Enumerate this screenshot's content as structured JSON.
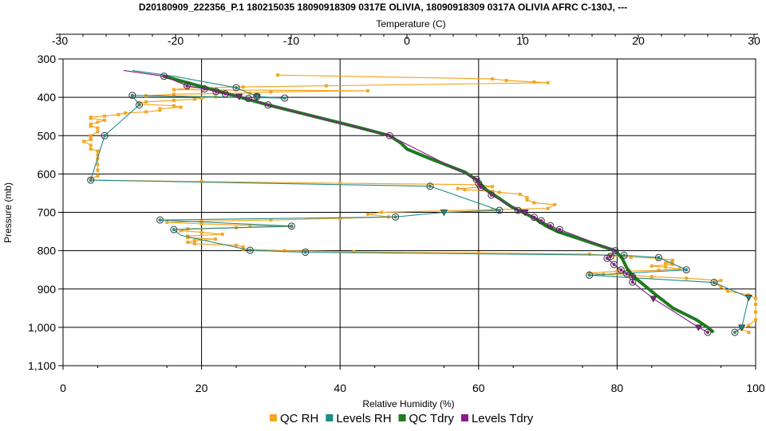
{
  "chart_data": {
    "type": "line",
    "title": "D20180909_222356_P.1 180215035 18090918309 0317E OLIVIA, 18090918309 0317A OLIVIA AFRC C-130J, ---",
    "top_axis": {
      "label": "Temperature (C)",
      "ticks": [
        "-30",
        "-20",
        "-10",
        "0",
        "10",
        "20",
        "30"
      ],
      "range": [
        -30,
        30
      ]
    },
    "bottom_axis": {
      "label": "Relative Humidity (%)",
      "ticks": [
        "0",
        "20",
        "40",
        "60",
        "80",
        "100"
      ],
      "range": [
        0,
        100
      ]
    },
    "left_axis": {
      "label": "Pressure (mb)",
      "ticks": [
        "300",
        "400",
        "500",
        "600",
        "700",
        "800",
        "900",
        "1,000",
        "1,100"
      ],
      "range": [
        300,
        1100
      ],
      "inverted": true
    },
    "grid": true,
    "legend_position": "bottom",
    "colors": {
      "qc_rh": "#f5a623",
      "levels_rh": "#1f8a8a",
      "qc_tdry": "#1e7b1e",
      "levels_tdry": "#8b1a8b"
    },
    "legend": [
      {
        "key": "qc_rh",
        "label": "QC RH"
      },
      {
        "key": "levels_rh",
        "label": "Levels RH"
      },
      {
        "key": "qc_tdry",
        "label": "QC Tdry"
      },
      {
        "key": "levels_tdry",
        "label": "Levels Tdry"
      }
    ],
    "series": [
      {
        "name": "QC RH",
        "key": "qc_rh",
        "x_axis": "rh",
        "points": [
          [
            31,
            342
          ],
          [
            62,
            352
          ],
          [
            64,
            356
          ],
          [
            68,
            360
          ],
          [
            70,
            362
          ],
          [
            38,
            370
          ],
          [
            26,
            373
          ],
          [
            18,
            376
          ],
          [
            16,
            380
          ],
          [
            44,
            383
          ],
          [
            30,
            386
          ],
          [
            27,
            389
          ],
          [
            16,
            392
          ],
          [
            12,
            396
          ],
          [
            22,
            399
          ],
          [
            20,
            402
          ],
          [
            19,
            405
          ],
          [
            16,
            408
          ],
          [
            12,
            412
          ],
          [
            11,
            415
          ],
          [
            11,
            418
          ],
          [
            16,
            422
          ],
          [
            17,
            426
          ],
          [
            14,
            430
          ],
          [
            14,
            434
          ],
          [
            12,
            438
          ],
          [
            9,
            441
          ],
          [
            8,
            445
          ],
          [
            6,
            449
          ],
          [
            4,
            452
          ],
          [
            4,
            455
          ],
          [
            6,
            460
          ],
          [
            5,
            465
          ],
          [
            4,
            470
          ],
          [
            4,
            475
          ],
          [
            5,
            480
          ],
          [
            5,
            490
          ],
          [
            4,
            500
          ],
          [
            4,
            505
          ],
          [
            4,
            510
          ],
          [
            3,
            515
          ],
          [
            4,
            525
          ],
          [
            4,
            535
          ],
          [
            5,
            540
          ],
          [
            5,
            550
          ],
          [
            5,
            560
          ],
          [
            5,
            575
          ],
          [
            5,
            590
          ],
          [
            5,
            605
          ],
          [
            4,
            612
          ],
          [
            4,
            616
          ],
          [
            20,
            620
          ],
          [
            40,
            624
          ],
          [
            60,
            628
          ],
          [
            62,
            633
          ],
          [
            57,
            638
          ],
          [
            58,
            641
          ],
          [
            62,
            645
          ],
          [
            63,
            648
          ],
          [
            66,
            653
          ],
          [
            67,
            662
          ],
          [
            67,
            668
          ],
          [
            68,
            675
          ],
          [
            71,
            680
          ],
          [
            70,
            690
          ],
          [
            62,
            693
          ],
          [
            55,
            696
          ],
          [
            46,
            700
          ],
          [
            44,
            705
          ],
          [
            47,
            712
          ],
          [
            40,
            716
          ],
          [
            30,
            720
          ],
          [
            20,
            723
          ],
          [
            15,
            726
          ],
          [
            20,
            730
          ],
          [
            27,
            734
          ],
          [
            33,
            737
          ],
          [
            25,
            740
          ],
          [
            18,
            743
          ],
          [
            17,
            748
          ],
          [
            20,
            752
          ],
          [
            23,
            757
          ],
          [
            18,
            762
          ],
          [
            18,
            766
          ],
          [
            22,
            770
          ],
          [
            19,
            774
          ],
          [
            18,
            778
          ],
          [
            19,
            782
          ],
          [
            25,
            786
          ],
          [
            26,
            790
          ],
          [
            26,
            796
          ],
          [
            32,
            800
          ],
          [
            42,
            803
          ],
          [
            60,
            806
          ],
          [
            76,
            809
          ],
          [
            79,
            813
          ],
          [
            82,
            817
          ],
          [
            86,
            820
          ],
          [
            88,
            825
          ],
          [
            88,
            828
          ],
          [
            87,
            832
          ],
          [
            88,
            836
          ],
          [
            85,
            840
          ],
          [
            87,
            843
          ],
          [
            89,
            848
          ],
          [
            86,
            851
          ],
          [
            80,
            854
          ],
          [
            76,
            858
          ],
          [
            78,
            862
          ],
          [
            82,
            864
          ],
          [
            85,
            868
          ],
          [
            90,
            872
          ],
          [
            95,
            878
          ],
          [
            94,
            884
          ],
          [
            95,
            895
          ],
          [
            96,
            906
          ],
          [
            99,
            915
          ],
          [
            100,
            925
          ],
          [
            100,
            940
          ],
          [
            100,
            960
          ],
          [
            100,
            980
          ],
          [
            99,
            995
          ],
          [
            98,
            1005
          ],
          [
            99,
            1013
          ]
        ]
      },
      {
        "name": "Levels RH",
        "key": "levels_rh",
        "x_axis": "rh",
        "points": [
          [
            10,
            330
          ],
          [
            16,
            345
          ],
          [
            25,
            375
          ],
          [
            28,
            398
          ],
          [
            32,
            402
          ],
          [
            10,
            395
          ],
          [
            11,
            420
          ],
          [
            6,
            500
          ],
          [
            4,
            616
          ],
          [
            53,
            632
          ],
          [
            63,
            695
          ],
          [
            55,
            700
          ],
          [
            48,
            712
          ],
          [
            14,
            720
          ],
          [
            33,
            736
          ],
          [
            16,
            745
          ],
          [
            17,
            760
          ],
          [
            27,
            799
          ],
          [
            35,
            804
          ],
          [
            81,
            812
          ],
          [
            86,
            818
          ],
          [
            90,
            850
          ],
          [
            76,
            864
          ],
          [
            94,
            883
          ],
          [
            99,
            922
          ],
          [
            98,
            1000
          ],
          [
            97,
            1013
          ]
        ]
      },
      {
        "name": "QC Tdry",
        "key": "qc_tdry",
        "x_axis": "temp",
        "points": [
          [
            -21,
            345
          ],
          [
            -18,
            370
          ],
          [
            -15,
            395
          ],
          [
            -12,
            420
          ],
          [
            -8,
            450
          ],
          [
            -4,
            480
          ],
          [
            -1.5,
            500
          ],
          [
            -0.5,
            520
          ],
          [
            0,
            535
          ],
          [
            2,
            560
          ],
          [
            5,
            595
          ],
          [
            6,
            615
          ],
          [
            6.8,
            640
          ],
          [
            7.8,
            660
          ],
          [
            9,
            685
          ],
          [
            10,
            700
          ],
          [
            11,
            715
          ],
          [
            12,
            735
          ],
          [
            13,
            750
          ],
          [
            15,
            770
          ],
          [
            17,
            790
          ],
          [
            18,
            800
          ],
          [
            18.6,
            820
          ],
          [
            19,
            845
          ],
          [
            19.5,
            865
          ],
          [
            20.5,
            890
          ],
          [
            21.5,
            915
          ],
          [
            23,
            950
          ],
          [
            25,
            980
          ],
          [
            26,
            1000
          ],
          [
            26.5,
            1013
          ]
        ]
      },
      {
        "name": "Levels Tdry",
        "key": "levels_tdry",
        "x_axis": "temp",
        "points": [
          [
            -24.5,
            330
          ],
          [
            -21,
            345
          ],
          [
            -19,
            370
          ],
          [
            -17.5,
            378
          ],
          [
            -16.5,
            385
          ],
          [
            -15.7,
            391
          ],
          [
            -14.5,
            398
          ],
          [
            -13.7,
            403
          ],
          [
            -12,
            420
          ],
          [
            -1.5,
            500
          ],
          [
            6,
            614
          ],
          [
            6.2,
            625
          ],
          [
            6.4,
            635
          ],
          [
            7.3,
            655
          ],
          [
            9.6,
            695
          ],
          [
            10.2,
            700
          ],
          [
            11,
            713
          ],
          [
            11.6,
            722
          ],
          [
            12.4,
            735
          ],
          [
            13.2,
            745
          ],
          [
            18,
            800
          ],
          [
            17.6,
            815
          ],
          [
            17.3,
            820
          ],
          [
            17.9,
            836
          ],
          [
            18.5,
            850
          ],
          [
            19,
            860
          ],
          [
            19.5,
            868
          ],
          [
            19.5,
            882
          ],
          [
            21.3,
            925
          ],
          [
            25.2,
            1000
          ],
          [
            26,
            1013
          ]
        ]
      }
    ],
    "markers": {
      "levels_rh_circles": [
        [
          25,
          375
        ],
        [
          28,
          398
        ],
        [
          32,
          402
        ],
        [
          10,
          395
        ],
        [
          11,
          420
        ],
        [
          6,
          500
        ],
        [
          4,
          616
        ],
        [
          53,
          632
        ],
        [
          63,
          695
        ],
        [
          48,
          712
        ],
        [
          14,
          720
        ],
        [
          33,
          736
        ],
        [
          16,
          745
        ],
        [
          27,
          799
        ],
        [
          35,
          804
        ],
        [
          81,
          812
        ],
        [
          86,
          818
        ],
        [
          90,
          850
        ],
        [
          76,
          864
        ],
        [
          94,
          883
        ],
        [
          97,
          1013
        ]
      ],
      "levels_rh_triangles": [
        [
          28,
          398
        ],
        [
          55,
          700
        ],
        [
          99,
          922
        ],
        [
          98,
          1000
        ]
      ],
      "levels_tdry_circles": [
        [
          -21,
          345
        ],
        [
          -19,
          370
        ],
        [
          -17.5,
          378
        ],
        [
          -16.5,
          385
        ],
        [
          -15.7,
          391
        ],
        [
          -13.7,
          403
        ],
        [
          -12,
          420
        ],
        [
          -1.5,
          500
        ],
        [
          6,
          614
        ],
        [
          6.2,
          625
        ],
        [
          6.4,
          635
        ],
        [
          7.3,
          655
        ],
        [
          9.6,
          695
        ],
        [
          11,
          713
        ],
        [
          11.6,
          722
        ],
        [
          12.4,
          735
        ],
        [
          13.2,
          745
        ],
        [
          18,
          800
        ],
        [
          17.6,
          815
        ],
        [
          17.3,
          820
        ],
        [
          17.9,
          836
        ],
        [
          18.5,
          850
        ],
        [
          19,
          860
        ],
        [
          19.5,
          868
        ],
        [
          19.5,
          882
        ],
        [
          26,
          1013
        ]
      ],
      "levels_tdry_triangles": [
        [
          -14.5,
          398
        ],
        [
          10.2,
          700
        ],
        [
          21.3,
          925
        ],
        [
          25.2,
          1000
        ]
      ]
    }
  }
}
